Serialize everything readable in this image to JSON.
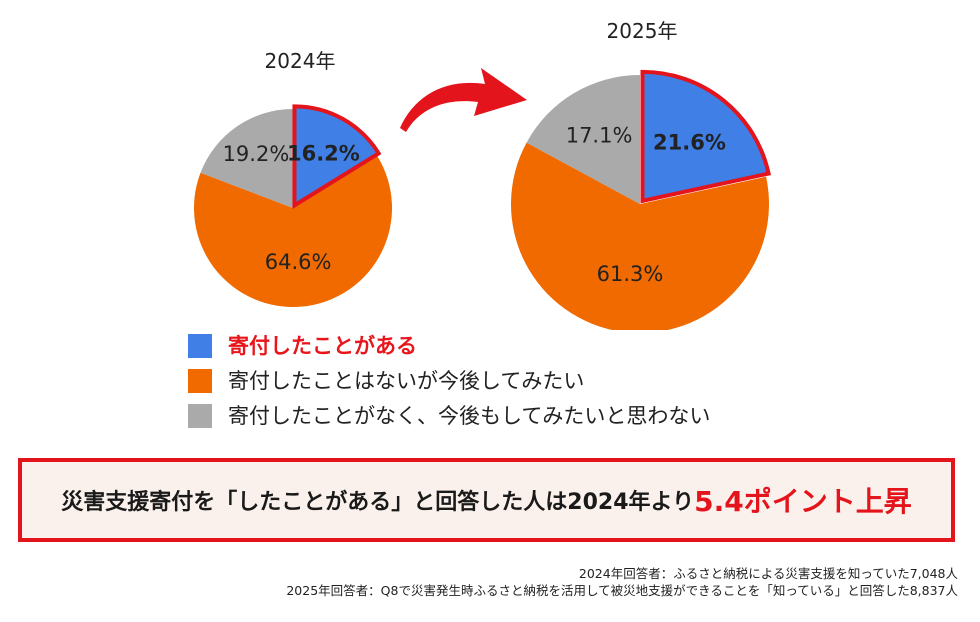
{
  "chart_data": [
    {
      "type": "pie",
      "title": "2024年",
      "slices": [
        {
          "label": "寄付したことがある",
          "value": 16.2,
          "display": "16.2%",
          "color": "#3f7fe6",
          "highlight": true
        },
        {
          "label": "寄付したことはないが今後してみたい",
          "value": 64.6,
          "display": "64.6%",
          "color": "#f06a00",
          "highlight": false
        },
        {
          "label": "寄付したことがなく、今後もしてみたいと思わない",
          "value": 19.2,
          "display": "19.2%",
          "color": "#aaaaaa",
          "highlight": false
        }
      ]
    },
    {
      "type": "pie",
      "title": "2025年",
      "slices": [
        {
          "label": "寄付したことがある",
          "value": 21.6,
          "display": "21.6%",
          "color": "#3f7fe6",
          "highlight": true
        },
        {
          "label": "寄付したことはないが今後してみたい",
          "value": 61.3,
          "display": "61.3%",
          "color": "#f06a00",
          "highlight": false
        },
        {
          "label": "寄付したことがなく、今後もしてみたいと思わない",
          "value": 17.1,
          "display": "17.1%",
          "color": "#aaaaaa",
          "highlight": false
        }
      ]
    }
  ],
  "colors": {
    "highlight_outline": "#e3141c",
    "arrow": "#e3141c",
    "callout_background": "#fbf1ec"
  },
  "legend": {
    "items": [
      {
        "label": "寄付したことがある",
        "color": "#3f7fe6",
        "highlight": true
      },
      {
        "label": "寄付したことはないが今後してみたい",
        "color": "#f06a00",
        "highlight": false
      },
      {
        "label": "寄付したことがなく、今後もしてみたいと思わない",
        "color": "#aaaaaa",
        "highlight": false
      }
    ]
  },
  "arrow_icon": "curved-arrow-right",
  "callout": {
    "text": "災害支援寄付を「したことがある」と回答した人は2024年より",
    "highlight": "5.4ポイント上昇"
  },
  "notes": [
    "2024年回答者：ふるさと納税による災害支援を知っていた7,048人",
    "2025年回答者：Q8で災害発生時ふるさと納税を活用して被災地支援ができることを「知っている」と回答した8,837人"
  ]
}
